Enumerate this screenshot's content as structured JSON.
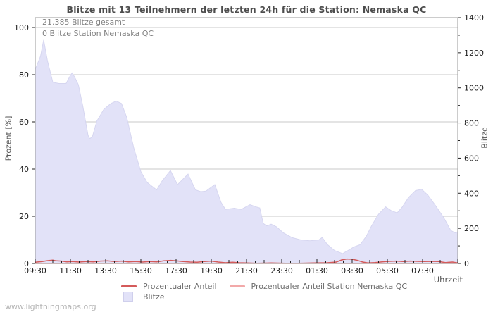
{
  "page": {
    "watermark": "www.lightningmaps.org"
  },
  "chart_data": {
    "type": "area",
    "title": "Blitze mit 13 Teilnehmern der letzten 24h für die Station: Nemaska QC",
    "annotations": [
      "21.385 Blitze gesamt",
      "0 Blitze Station Nemaska QC"
    ],
    "xlabel": "Uhrzeit",
    "ylabel_left": "Prozent  [%]",
    "ylabel_right": "Blitze",
    "x_tick_labels": [
      "09:30",
      "11:30",
      "13:30",
      "15:30",
      "17:30",
      "19:30",
      "21:30",
      "23:30",
      "01:30",
      "03:30",
      "05:30",
      "07:30"
    ],
    "x_tick_hours": [
      0,
      2,
      4,
      6,
      8,
      10,
      12,
      14,
      16,
      18,
      20,
      22
    ],
    "x_range_hours": [
      0,
      24
    ],
    "left_axis": {
      "label": "Prozent  [%]",
      "min": 0,
      "max": 100,
      "ticks": [
        0,
        20,
        40,
        60,
        80,
        100
      ]
    },
    "right_axis": {
      "label": "Blitze",
      "min": 0,
      "max": 1400,
      "ticks": [
        0,
        200,
        400,
        600,
        800,
        1000,
        1200,
        1400
      ],
      "minor_step": 100
    },
    "grid": true,
    "colors": {
      "area_fill": "#e2e2f8",
      "area_stroke": "#d6d6f0",
      "line_total_pct": "#d45a5a",
      "line_station_pct": "#f2a9a9",
      "grid": "#c9c9c9",
      "frame": "#9a9a9a",
      "tick": "#222222"
    },
    "legend": [
      {
        "label": "Prozentualer Anteil",
        "type": "line",
        "color": "#d45a5a"
      },
      {
        "label": "Prozentualer Anteil Station Nemaska QC",
        "type": "line",
        "color": "#f2a9a9"
      },
      {
        "label": "Blitze",
        "type": "area",
        "color": "#e2e2f8"
      }
    ],
    "series": [
      {
        "name": "Blitze",
        "axis": "right",
        "kind": "area",
        "points": [
          [
            0,
            1105
          ],
          [
            0.3,
            1180
          ],
          [
            0.48,
            1273
          ],
          [
            0.7,
            1152
          ],
          [
            1.0,
            1032
          ],
          [
            1.35,
            1025
          ],
          [
            1.75,
            1025
          ],
          [
            2.0,
            1072
          ],
          [
            2.1,
            1085
          ],
          [
            2.25,
            1059
          ],
          [
            2.45,
            1018
          ],
          [
            2.7,
            898
          ],
          [
            3.0,
            730
          ],
          [
            3.1,
            710
          ],
          [
            3.25,
            724
          ],
          [
            3.5,
            811
          ],
          [
            3.9,
            878
          ],
          [
            4.3,
            911
          ],
          [
            4.6,
            925
          ],
          [
            4.9,
            911
          ],
          [
            5.2,
            831
          ],
          [
            5.6,
            657
          ],
          [
            6.0,
            523
          ],
          [
            6.35,
            462
          ],
          [
            6.6,
            442
          ],
          [
            6.9,
            419
          ],
          [
            7.2,
            469
          ],
          [
            7.68,
            529
          ],
          [
            8.08,
            449
          ],
          [
            8.68,
            509
          ],
          [
            9.1,
            419
          ],
          [
            9.4,
            409
          ],
          [
            9.7,
            412
          ],
          [
            10.2,
            449
          ],
          [
            10.55,
            348
          ],
          [
            10.8,
            308
          ],
          [
            11.3,
            315
          ],
          [
            11.7,
            308
          ],
          [
            12.2,
            335
          ],
          [
            12.55,
            322
          ],
          [
            12.75,
            316
          ],
          [
            12.95,
            228
          ],
          [
            13.15,
            214
          ],
          [
            13.4,
            224
          ],
          [
            13.7,
            209
          ],
          [
            14.1,
            174
          ],
          [
            14.6,
            147
          ],
          [
            15.1,
            134
          ],
          [
            15.6,
            129
          ],
          [
            16.1,
            134
          ],
          [
            16.3,
            148
          ],
          [
            16.6,
            107
          ],
          [
            17.0,
            74
          ],
          [
            17.45,
            56
          ],
          [
            17.8,
            76
          ],
          [
            18.1,
            94
          ],
          [
            18.45,
            107
          ],
          [
            18.8,
            154
          ],
          [
            19.1,
            214
          ],
          [
            19.5,
            281
          ],
          [
            19.9,
            322
          ],
          [
            20.2,
            302
          ],
          [
            20.55,
            288
          ],
          [
            20.85,
            322
          ],
          [
            21.2,
            375
          ],
          [
            21.6,
            415
          ],
          [
            21.95,
            422
          ],
          [
            22.3,
            389
          ],
          [
            22.7,
            335
          ],
          [
            23.2,
            261
          ],
          [
            23.6,
            188
          ],
          [
            23.85,
            174
          ],
          [
            24,
            181
          ]
        ]
      },
      {
        "name": "Prozentualer Anteil",
        "axis": "left",
        "kind": "line",
        "points": [
          [
            0,
            0.5
          ],
          [
            0.4,
            0.8
          ],
          [
            0.7,
            1.2
          ],
          [
            1.0,
            1.4
          ],
          [
            1.2,
            1.1
          ],
          [
            1.5,
            1.0
          ],
          [
            1.8,
            0.7
          ],
          [
            2.1,
            0.8
          ],
          [
            2.5,
            0.6
          ],
          [
            2.9,
            0.8
          ],
          [
            3.3,
            0.7
          ],
          [
            3.7,
            1.0
          ],
          [
            4.1,
            1.1
          ],
          [
            4.5,
            0.8
          ],
          [
            4.9,
            1.0
          ],
          [
            5.3,
            0.7
          ],
          [
            5.7,
            0.8
          ],
          [
            6.1,
            0.6
          ],
          [
            6.5,
            0.8
          ],
          [
            6.9,
            0.7
          ],
          [
            7.3,
            1.1
          ],
          [
            7.7,
            1.3
          ],
          [
            8.0,
            1.1
          ],
          [
            8.4,
            0.8
          ],
          [
            8.8,
            0.6
          ],
          [
            9.2,
            0.5
          ],
          [
            9.6,
            0.8
          ],
          [
            10.0,
            1.0
          ],
          [
            10.4,
            0.6
          ],
          [
            10.8,
            0.3
          ],
          [
            11.2,
            0.5
          ],
          [
            11.6,
            0.3
          ],
          [
            12.0,
            0.2
          ],
          [
            12.6,
            0.1
          ],
          [
            13.4,
            0.2
          ],
          [
            14.2,
            0.1
          ],
          [
            15.0,
            0.1
          ],
          [
            15.8,
            0.2
          ],
          [
            16.6,
            0.3
          ],
          [
            17.1,
            0.6
          ],
          [
            17.4,
            1.5
          ],
          [
            17.7,
            1.9
          ],
          [
            18.0,
            1.8
          ],
          [
            18.3,
            1.3
          ],
          [
            18.6,
            0.6
          ],
          [
            18.9,
            0.2
          ],
          [
            19.3,
            0.4
          ],
          [
            19.7,
            0.7
          ],
          [
            20.1,
            0.9
          ],
          [
            20.5,
            1.0
          ],
          [
            20.9,
            0.8
          ],
          [
            21.3,
            1.0
          ],
          [
            21.7,
            0.9
          ],
          [
            22.1,
            0.8
          ],
          [
            22.5,
            0.9
          ],
          [
            22.9,
            0.8
          ],
          [
            23.3,
            0.4
          ],
          [
            23.7,
            0.6
          ],
          [
            24,
            0.2
          ]
        ]
      },
      {
        "name": "Prozentualer Anteil Station Nemaska QC",
        "axis": "left",
        "kind": "line",
        "points": [
          [
            0,
            0
          ],
          [
            24,
            0
          ]
        ]
      }
    ]
  }
}
